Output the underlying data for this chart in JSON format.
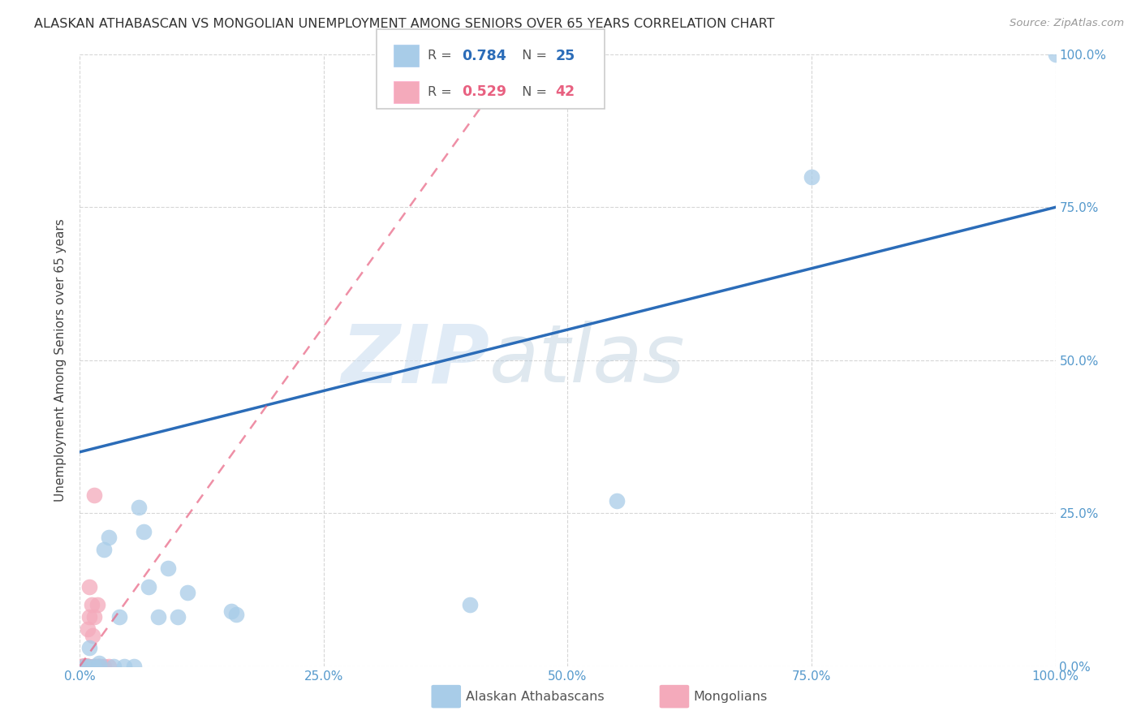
{
  "title": "ALASKAN ATHABASCAN VS MONGOLIAN UNEMPLOYMENT AMONG SENIORS OVER 65 YEARS CORRELATION CHART",
  "source": "Source: ZipAtlas.com",
  "ylabel": "Unemployment Among Seniors over 65 years",
  "watermark_zip": "ZIP",
  "watermark_atlas": "atlas",
  "legend1_r": "R = 0.784",
  "legend1_n": "N = 25",
  "legend2_r": "R = 0.529",
  "legend2_n": "N = 42",
  "blue_color": "#A8CCE8",
  "blue_line_color": "#2B6CB8",
  "pink_color": "#F4AABB",
  "pink_line_color": "#E86080",
  "athabascan_x": [
    0.005,
    0.008,
    0.01,
    0.015,
    0.02,
    0.02,
    0.025,
    0.03,
    0.035,
    0.04,
    0.045,
    0.055,
    0.06,
    0.065,
    0.07,
    0.08,
    0.09,
    0.1,
    0.11,
    0.155,
    0.16,
    0.4,
    0.55,
    0.75,
    1.0
  ],
  "athabascan_y": [
    0.0,
    0.0,
    0.03,
    0.0,
    0.0,
    0.005,
    0.19,
    0.21,
    0.0,
    0.08,
    0.0,
    0.0,
    0.26,
    0.22,
    0.13,
    0.08,
    0.16,
    0.08,
    0.12,
    0.09,
    0.085,
    0.1,
    0.27,
    0.8,
    1.0
  ],
  "mongolian_x": [
    0.001,
    0.002,
    0.002,
    0.003,
    0.003,
    0.003,
    0.004,
    0.004,
    0.004,
    0.004,
    0.005,
    0.005,
    0.005,
    0.005,
    0.005,
    0.006,
    0.006,
    0.006,
    0.006,
    0.007,
    0.007,
    0.007,
    0.008,
    0.008,
    0.008,
    0.009,
    0.009,
    0.01,
    0.01,
    0.012,
    0.013,
    0.014,
    0.015,
    0.015,
    0.016,
    0.017,
    0.018,
    0.02,
    0.02,
    0.022,
    0.025,
    0.03
  ],
  "mongolian_y": [
    0.0,
    0.0,
    0.0,
    0.0,
    0.0,
    0.0,
    0.0,
    0.0,
    0.0,
    0.0,
    0.0,
    0.0,
    0.0,
    0.0,
    0.0,
    0.0,
    0.0,
    0.0,
    0.0,
    0.0,
    0.0,
    0.0,
    0.06,
    0.0,
    0.0,
    0.0,
    0.0,
    0.08,
    0.13,
    0.1,
    0.05,
    0.0,
    0.08,
    0.28,
    0.0,
    0.0,
    0.1,
    0.0,
    0.0,
    0.0,
    0.0,
    0.0
  ],
  "blue_line_x0": 0.0,
  "blue_line_y0": 0.35,
  "blue_line_x1": 1.0,
  "blue_line_y1": 0.75,
  "pink_line_x0": 0.0,
  "pink_line_y0": 0.0,
  "pink_line_x1": 0.45,
  "pink_line_y1": 1.0,
  "xlim": [
    0,
    1.0
  ],
  "ylim": [
    0,
    1.0
  ],
  "xticks": [
    0.0,
    0.25,
    0.5,
    0.75,
    1.0
  ],
  "xticklabels": [
    "0.0%",
    "25.0%",
    "50.0%",
    "75.0%",
    "100.0%"
  ],
  "yticks": [
    0.0,
    0.25,
    0.5,
    0.75,
    1.0
  ],
  "yticklabels": [
    "0.0%",
    "25.0%",
    "50.0%",
    "75.0%",
    "100.0%"
  ],
  "grid_color": "#CCCCCC",
  "title_fontsize": 11.5,
  "tick_fontsize": 11,
  "ylabel_fontsize": 11
}
